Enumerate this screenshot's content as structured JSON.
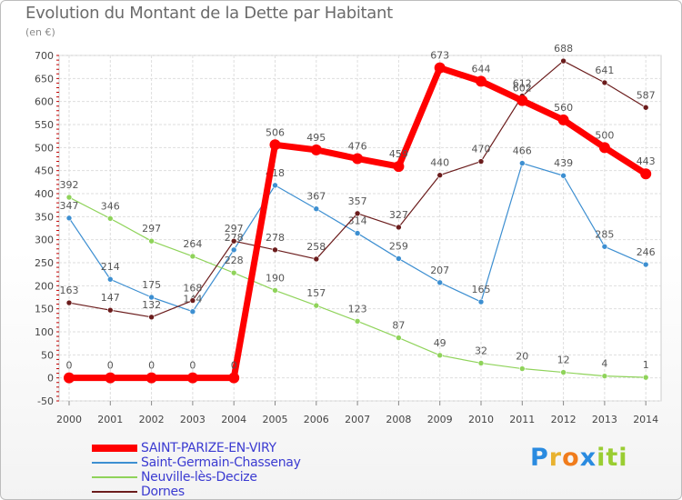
{
  "chart_data": {
    "type": "line",
    "title": "Evolution du Montant de la Dette par Habitant",
    "subtitle": "(en €)",
    "ylim": [
      -50,
      700
    ],
    "yticks": [
      -50,
      0,
      50,
      100,
      150,
      200,
      250,
      300,
      350,
      400,
      450,
      500,
      550,
      600,
      650,
      700
    ],
    "grid": true,
    "legend_position": "bottom-left",
    "x": [
      "2000",
      "2001",
      "2002",
      "2003",
      "2004",
      "2005",
      "2006",
      "2007",
      "2008",
      "2009",
      "2010",
      "2011",
      "2012",
      "2013",
      "2014"
    ],
    "series": [
      {
        "name": "SAINT-PARIZE-EN-VIRY",
        "color": "#ff0000",
        "highlight": true,
        "values": [
          0,
          0,
          0,
          0,
          0,
          506,
          495,
          476,
          459,
          673,
          644,
          602,
          560,
          500,
          443
        ]
      },
      {
        "name": "Saint-Germain-Chassenay",
        "color": "#3d8fd1",
        "highlight": false,
        "values": [
          347,
          214,
          175,
          144,
          278,
          418,
          367,
          314,
          259,
          207,
          165,
          466,
          439,
          285,
          246
        ]
      },
      {
        "name": "Neuville-lès-Decize",
        "color": "#8fd35a",
        "highlight": false,
        "values": [
          392,
          346,
          297,
          264,
          228,
          190,
          157,
          123,
          87,
          49,
          32,
          20,
          12,
          4,
          1
        ]
      },
      {
        "name": "Dornes",
        "color": "#6b1c1c",
        "highlight": false,
        "values": [
          163,
          147,
          132,
          168,
          297,
          278,
          258,
          357,
          327,
          440,
          470,
          612,
          688,
          641,
          587
        ]
      }
    ]
  },
  "legend": {
    "title_color": "#6b6b6b",
    "text_color": "#3b3bd1"
  },
  "brand": {
    "letters": [
      "P",
      "r",
      "o",
      "x",
      "i",
      "t",
      "i"
    ],
    "colors": [
      "#2a8be0",
      "#e8b230",
      "#f07c1c",
      "#2a8be0",
      "#9acd32",
      "#9acd32",
      "#9acd32"
    ]
  }
}
